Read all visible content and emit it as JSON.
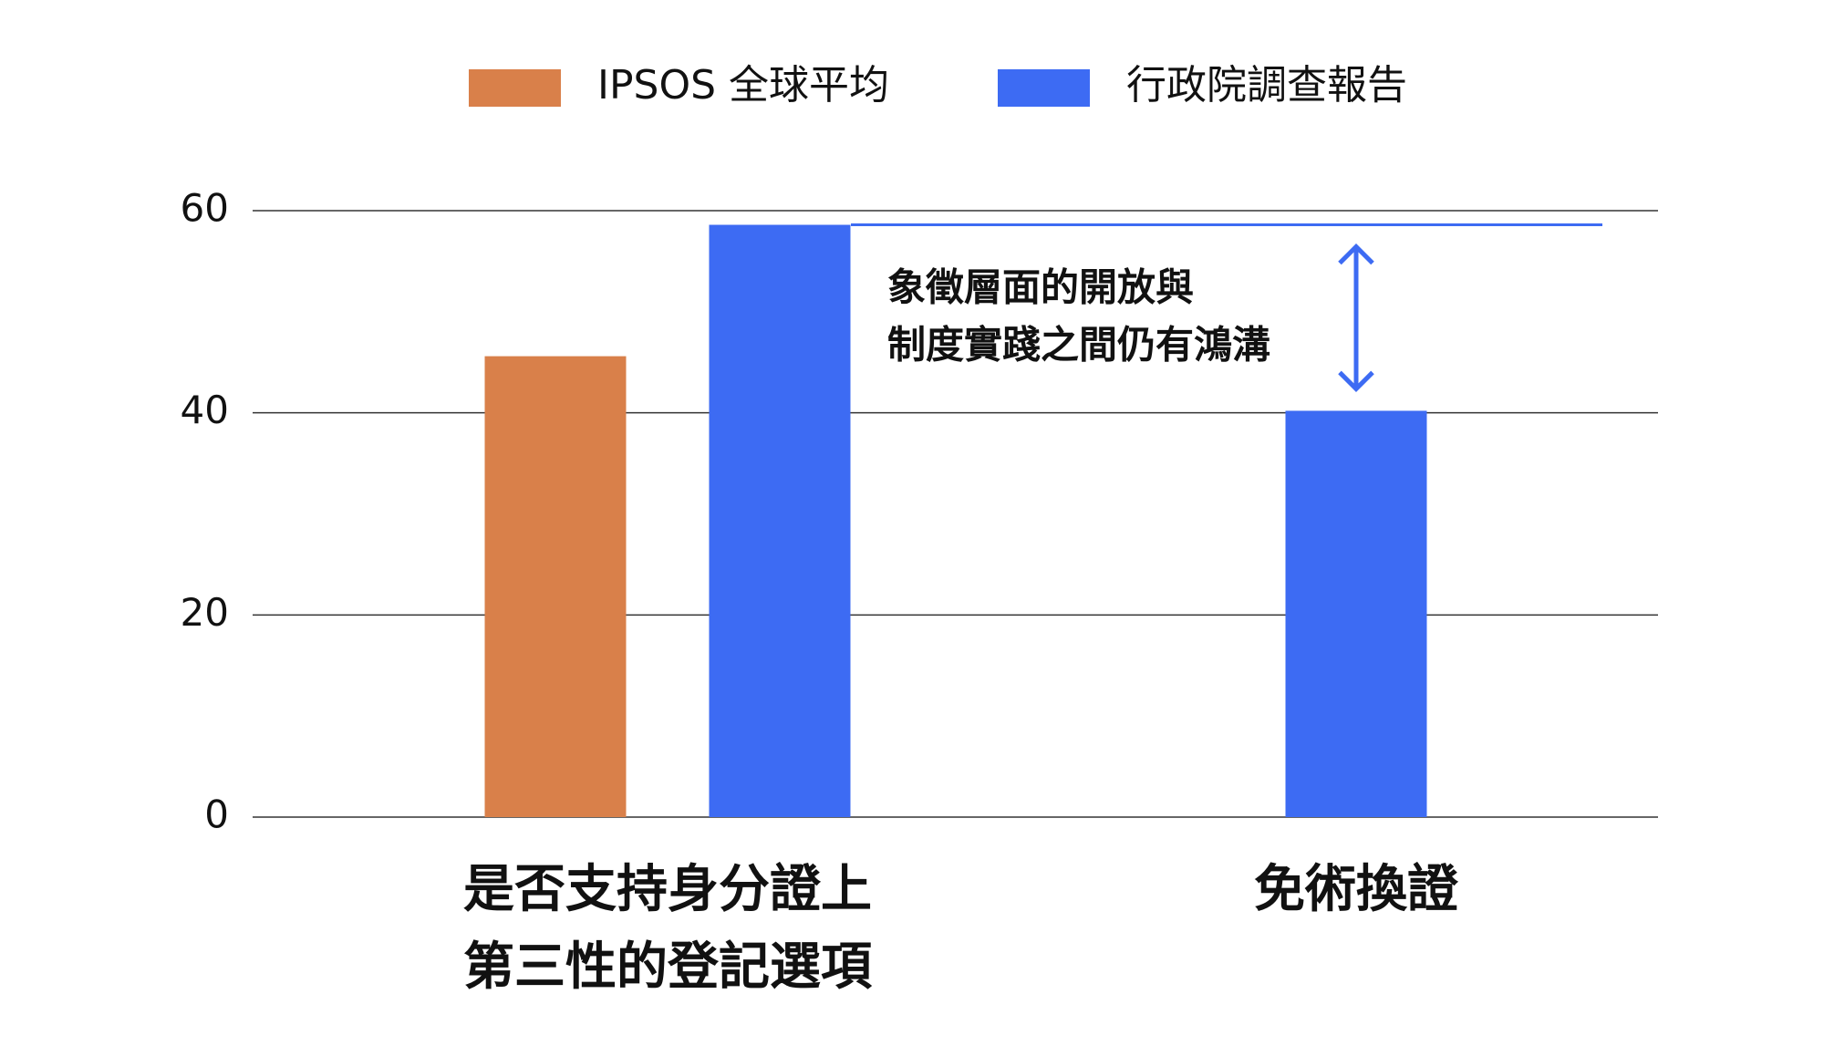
{
  "chart_data": {
    "type": "bar",
    "categories": [
      [
        "是否支持身分證上",
        "第三性的登記選項"
      ],
      [
        "免術換證"
      ]
    ],
    "series": [
      {
        "name": "IPSOS 全球平均",
        "color": "#d9804a",
        "values": [
          45.6,
          null
        ]
      },
      {
        "name": "行政院調查報告",
        "color": "#3d6bf3",
        "values": [
          58.6,
          40.2
        ]
      }
    ],
    "ylim": [
      0,
      60
    ],
    "yticks": [
      0,
      20,
      40,
      60
    ],
    "grid": true,
    "annotation": [
      "象徵層面的開放與",
      "制度實踐之間仍有鴻溝"
    ]
  }
}
